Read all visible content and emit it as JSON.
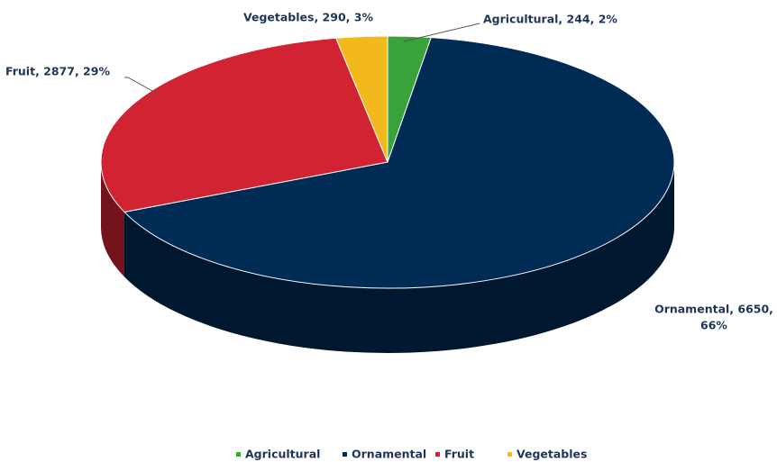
{
  "chart_data": {
    "type": "pie",
    "categories": [
      "Agricultural",
      "Ornamental",
      "Fruit",
      "Vegetables"
    ],
    "values": [
      244,
      6650,
      2877,
      290
    ],
    "value_labels": [
      [
        "Agricultural, 244, 2%"
      ],
      [
        "Ornamental, 6650,",
        "66%"
      ],
      [
        "Fruit, 2877, 29%"
      ],
      [
        "Vegetables, 290, 3%"
      ]
    ],
    "colors": [
      "#3aa23a",
      "#002b55",
      "#d22333",
      "#f3b81c"
    ],
    "legend": "bottom"
  }
}
